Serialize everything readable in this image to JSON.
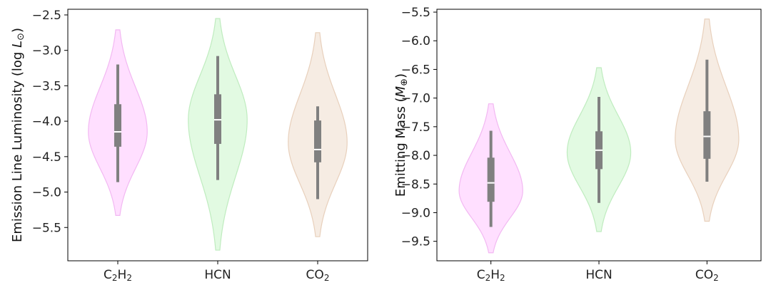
{
  "chart_data": [
    {
      "type": "violin",
      "ylabel_text": "Emission Line Luminosity (log ",
      "ylabel_sym": "L",
      "ylabel_sub": "⊙",
      "ylabel_end": ")",
      "ylim": [
        -5.97,
        -2.42
      ],
      "yticks": [
        -2.5,
        -3.0,
        -3.5,
        -4.0,
        -4.5,
        -5.0,
        -5.5
      ],
      "ytick_labels": [
        "−2.5",
        "−3.0",
        "−3.5",
        "−4.0",
        "−4.5",
        "−5.0",
        "−5.5"
      ],
      "grid": false,
      "categories": [
        {
          "base": "C",
          "s1": "2",
          "mid": "H",
          "s2": "2"
        },
        {
          "base": "HCN",
          "s1": "",
          "mid": "",
          "s2": ""
        },
        {
          "base": "CO",
          "s1": "2",
          "mid": "",
          "s2": ""
        }
      ],
      "violins": [
        {
          "color": "#ff9dff",
          "edge": "#f2b8f2",
          "min": -5.33,
          "max": -2.71,
          "mode": -4.15,
          "width": 0.62,
          "q1": -4.36,
          "median": -4.15,
          "q3": -3.76,
          "whisker_low": -4.86,
          "whisker_high": -3.2
        },
        {
          "color": "#a6eea6",
          "edge": "#bfecbf",
          "min": -5.82,
          "max": -2.55,
          "mode": -3.98,
          "width": 0.62,
          "q1": -4.32,
          "median": -3.98,
          "q3": -3.62,
          "whisker_low": -4.83,
          "whisker_high": -3.08
        },
        {
          "color": "#e3c4a8",
          "edge": "#e8d0bc",
          "min": -5.63,
          "max": -2.75,
          "mode": -4.3,
          "width": 0.62,
          "q1": -4.58,
          "median": -4.4,
          "q3": -3.99,
          "whisker_low": -5.1,
          "whisker_high": -3.79
        }
      ]
    },
    {
      "type": "violin",
      "ylabel_text": "Emitting Mass (",
      "ylabel_sym": "M",
      "ylabel_sub": "⊕",
      "ylabel_end": ")",
      "ylim": [
        -9.84,
        -5.45
      ],
      "yticks": [
        -5.5,
        -6.0,
        -6.5,
        -7.0,
        -7.5,
        -8.0,
        -8.5,
        -9.0,
        -9.5
      ],
      "ytick_labels": [
        "−5.5",
        "−6.0",
        "−6.5",
        "−7.0",
        "−7.5",
        "−8.0",
        "−8.5",
        "−9.0",
        "−9.5"
      ],
      "grid": false,
      "categories": [
        {
          "base": "C",
          "s1": "2",
          "mid": "H",
          "s2": "2"
        },
        {
          "base": "HCN",
          "s1": "",
          "mid": "",
          "s2": ""
        },
        {
          "base": "CO",
          "s1": "2",
          "mid": "",
          "s2": ""
        }
      ],
      "violins": [
        {
          "color": "#ff9dff",
          "edge": "#f2b8f2",
          "min": -9.7,
          "max": -7.1,
          "mode": -8.62,
          "width": 0.62,
          "q1": -8.81,
          "median": -8.48,
          "q3": -8.04,
          "whisker_low": -9.25,
          "whisker_high": -7.57
        },
        {
          "color": "#a6eea6",
          "edge": "#bfecbf",
          "min": -9.33,
          "max": -6.47,
          "mode": -7.95,
          "width": 0.62,
          "q1": -8.24,
          "median": -7.91,
          "q3": -7.58,
          "whisker_low": -8.83,
          "whisker_high": -6.98
        },
        {
          "color": "#e3c4a8",
          "edge": "#e8d0bc",
          "min": -9.15,
          "max": -5.62,
          "mode": -7.72,
          "width": 0.62,
          "q1": -8.06,
          "median": -7.67,
          "q3": -7.23,
          "whisker_low": -8.46,
          "whisker_high": -6.33
        }
      ]
    }
  ]
}
